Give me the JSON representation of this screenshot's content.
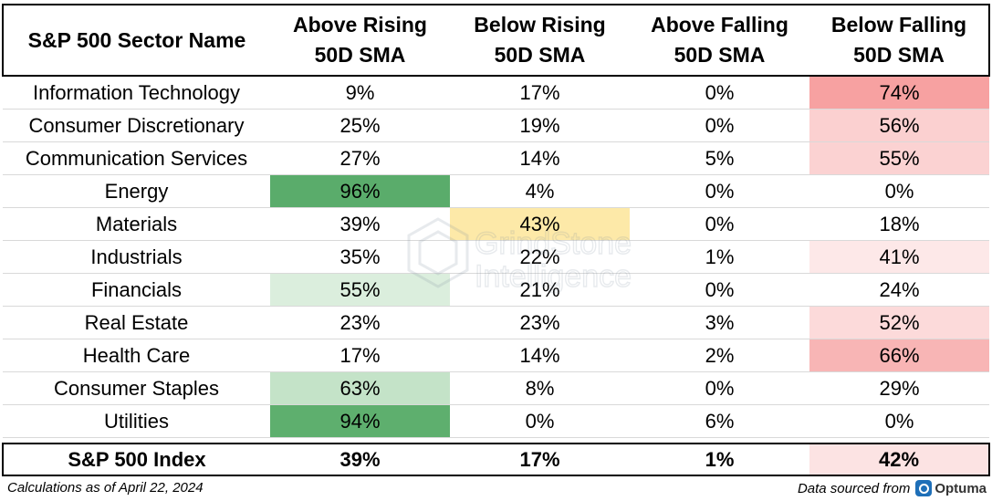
{
  "table": {
    "headers": [
      {
        "line1": "S&P 500 Sector Name",
        "line2": ""
      },
      {
        "line1": "Above Rising",
        "line2": "50D SMA"
      },
      {
        "line1": "Below Rising",
        "line2": "50D SMA"
      },
      {
        "line1": "Above Falling",
        "line2": "50D SMA"
      },
      {
        "line1": "Below Falling",
        "line2": "50D SMA"
      }
    ],
    "rows": [
      {
        "sector": "Information Technology",
        "values": [
          "9%",
          "17%",
          "0%",
          "74%"
        ],
        "bg": [
          "#ffffff",
          "#ffffff",
          "#ffffff",
          "#f7a1a1"
        ]
      },
      {
        "sector": "Consumer Discretionary",
        "values": [
          "25%",
          "19%",
          "0%",
          "56%"
        ],
        "bg": [
          "#ffffff",
          "#ffffff",
          "#ffffff",
          "#fbd0d0"
        ]
      },
      {
        "sector": "Communication Services",
        "values": [
          "27%",
          "14%",
          "5%",
          "55%"
        ],
        "bg": [
          "#ffffff",
          "#ffffff",
          "#ffffff",
          "#fbd2d2"
        ]
      },
      {
        "sector": "Energy",
        "values": [
          "96%",
          "4%",
          "0%",
          "0%"
        ],
        "bg": [
          "#5aac6b",
          "#ffffff",
          "#ffffff",
          "#ffffff"
        ]
      },
      {
        "sector": "Materials",
        "values": [
          "39%",
          "43%",
          "0%",
          "18%"
        ],
        "bg": [
          "#ffffff",
          "#fde9a8",
          "#ffffff",
          "#ffffff"
        ]
      },
      {
        "sector": "Industrials",
        "values": [
          "35%",
          "22%",
          "1%",
          "41%"
        ],
        "bg": [
          "#ffffff",
          "#ffffff",
          "#ffffff",
          "#fde8e8"
        ]
      },
      {
        "sector": "Financials",
        "values": [
          "55%",
          "21%",
          "0%",
          "24%"
        ],
        "bg": [
          "#dbeedd",
          "#ffffff",
          "#ffffff",
          "#ffffff"
        ]
      },
      {
        "sector": "Real Estate",
        "values": [
          "23%",
          "23%",
          "3%",
          "52%"
        ],
        "bg": [
          "#ffffff",
          "#ffffff",
          "#ffffff",
          "#fcdada"
        ]
      },
      {
        "sector": "Health Care",
        "values": [
          "17%",
          "14%",
          "2%",
          "66%"
        ],
        "bg": [
          "#ffffff",
          "#ffffff",
          "#ffffff",
          "#f8b5b5"
        ]
      },
      {
        "sector": "Consumer Staples",
        "values": [
          "63%",
          "8%",
          "0%",
          "29%"
        ],
        "bg": [
          "#c4e3c8",
          "#ffffff",
          "#ffffff",
          "#ffffff"
        ]
      },
      {
        "sector": "Utilities",
        "values": [
          "94%",
          "0%",
          "6%",
          "0%"
        ],
        "bg": [
          "#5eaf6e",
          "#ffffff",
          "#ffffff",
          "#ffffff"
        ]
      }
    ],
    "total": {
      "sector": "S&P 500 Index",
      "values": [
        "39%",
        "17%",
        "1%",
        "42%"
      ],
      "bg": [
        "#ffffff",
        "#ffffff",
        "#ffffff",
        "#fce3e3"
      ]
    }
  },
  "watermark": {
    "line1": "GrindStone",
    "line2": "Intelligence"
  },
  "footer": {
    "note": "Calculations as of April 22, 2024",
    "source_label": "Data sourced from",
    "source_logo_text": "Optuma"
  }
}
